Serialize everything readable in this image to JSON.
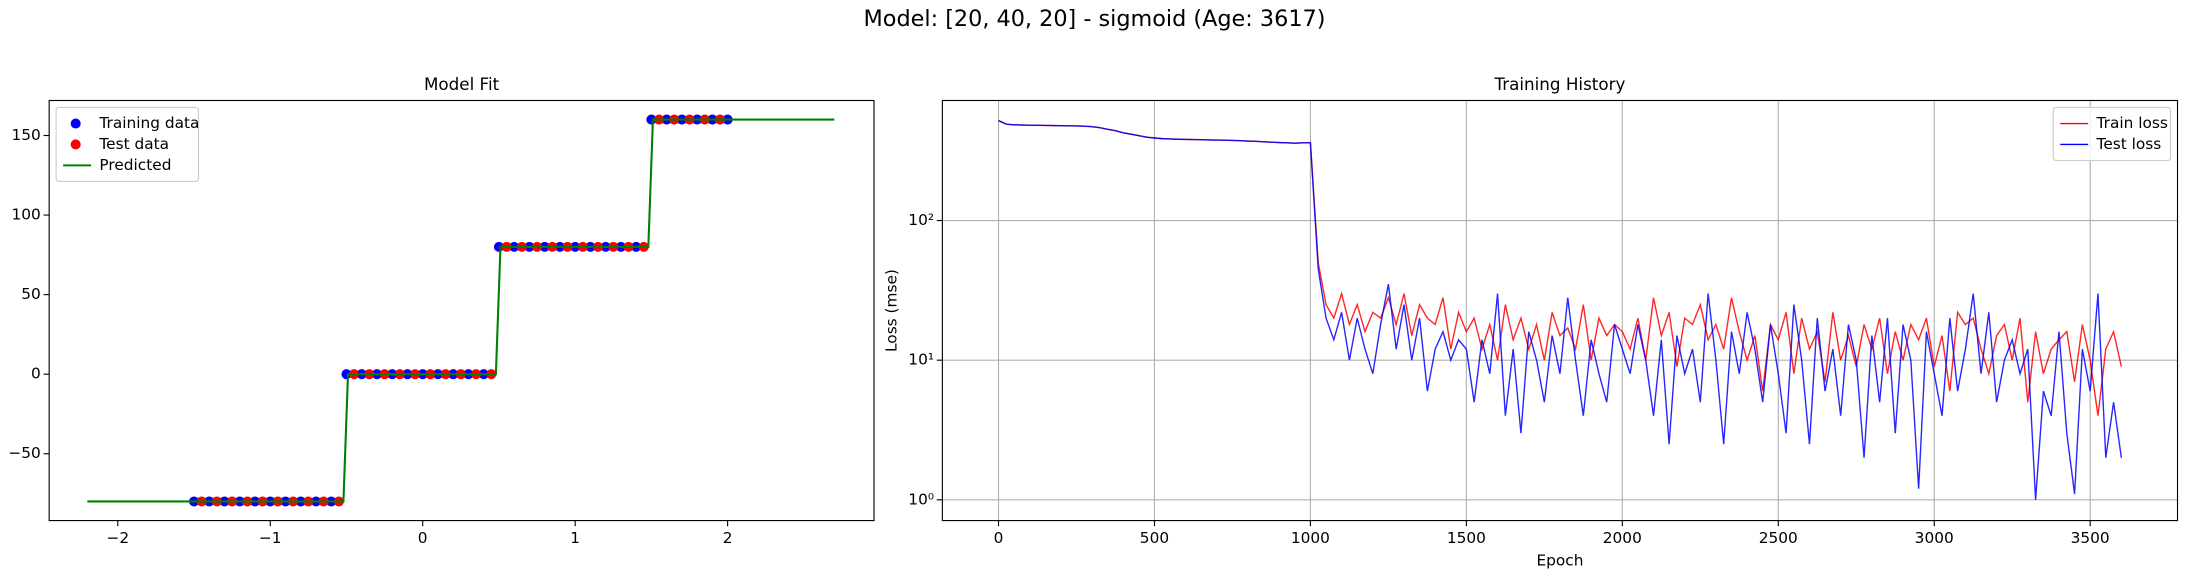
{
  "title": "Model: [20, 40, 20] - sigmoid (Age: 3617)",
  "chart_data": [
    {
      "type": "scatter",
      "title": "Model Fit",
      "legend": "upper left",
      "grid": false,
      "xlim": [
        -2.45,
        2.96
      ],
      "ylim": [
        -92,
        172
      ],
      "xticks": [
        {
          "value": -2,
          "label": "−2"
        },
        {
          "value": -1,
          "label": "−1"
        },
        0,
        1,
        2
      ],
      "yticks": [
        {
          "value": -50,
          "label": "−50"
        },
        0,
        50,
        100,
        150
      ],
      "series": [
        {
          "name": "Training data",
          "color": "blue",
          "style": "marker",
          "x": [
            -1.5,
            -1.4,
            -1.3,
            -1.2,
            -1.1,
            -1.0,
            -0.9,
            -0.8,
            -0.7,
            -0.6,
            -0.5,
            -0.4,
            -0.3,
            -0.2,
            -0.1,
            0.0,
            0.1,
            0.2,
            0.3,
            0.4,
            0.5,
            0.6,
            0.7,
            0.8,
            0.9,
            1.0,
            1.1,
            1.2,
            1.3,
            1.4,
            1.5,
            1.6,
            1.7,
            1.8,
            1.9,
            2.0
          ],
          "values": [
            -80,
            -80,
            -80,
            -80,
            -80,
            -80,
            -80,
            -80,
            -80,
            -80,
            0,
            0,
            0,
            0,
            0,
            0,
            0,
            0,
            0,
            0,
            80,
            80,
            80,
            80,
            80,
            80,
            80,
            80,
            80,
            80,
            160,
            160,
            160,
            160,
            160,
            160
          ]
        },
        {
          "name": "Test data",
          "color": "red",
          "style": "marker",
          "x": [
            -1.45,
            -1.35,
            -1.25,
            -1.15,
            -1.05,
            -0.95,
            -0.85,
            -0.75,
            -0.65,
            -0.55,
            -0.45,
            -0.35,
            -0.25,
            -0.15,
            -0.05,
            0.05,
            0.15,
            0.25,
            0.35,
            0.45,
            0.55,
            0.65,
            0.75,
            0.85,
            0.95,
            1.05,
            1.15,
            1.25,
            1.35,
            1.45,
            1.55,
            1.65,
            1.75,
            1.85,
            1.95
          ],
          "values": [
            -80,
            -80,
            -80,
            -80,
            -80,
            -80,
            -80,
            -80,
            -80,
            -80,
            0,
            0,
            0,
            0,
            0,
            0,
            0,
            0,
            0,
            0,
            80,
            80,
            80,
            80,
            80,
            80,
            80,
            80,
            80,
            80,
            160,
            160,
            160,
            160,
            160
          ]
        },
        {
          "name": "Predicted",
          "color": "green",
          "style": "line",
          "x": [
            -2.2,
            -0.52,
            -0.49,
            0.48,
            0.51,
            1.48,
            1.51,
            2.7
          ],
          "values": [
            -80,
            -80,
            0,
            0,
            80,
            80,
            160,
            160
          ]
        }
      ]
    },
    {
      "type": "line",
      "title": "Training History",
      "xlabel": "Epoch",
      "ylabel": "Loss (mse)",
      "legend": "upper right",
      "grid": true,
      "log_y": true,
      "xlim": [
        -180,
        3780
      ],
      "ylim": [
        0.71,
        724
      ],
      "xticks": [
        0,
        500,
        1000,
        1500,
        2000,
        2500,
        3000,
        3500
      ],
      "yticks": [
        {
          "value": 1,
          "label": "10⁰"
        },
        {
          "value": 10,
          "label": "10¹"
        },
        {
          "value": 100,
          "label": "10²"
        }
      ],
      "x": [
        0,
        25,
        50,
        75,
        100,
        125,
        150,
        175,
        200,
        225,
        250,
        275,
        300,
        325,
        350,
        375,
        400,
        425,
        450,
        475,
        500,
        525,
        550,
        575,
        600,
        625,
        650,
        675,
        700,
        725,
        750,
        775,
        800,
        825,
        850,
        875,
        900,
        925,
        950,
        975,
        1000,
        1025,
        1050,
        1075,
        1100,
        1125,
        1150,
        1175,
        1200,
        1225,
        1250,
        1275,
        1300,
        1325,
        1350,
        1375,
        1400,
        1425,
        1450,
        1475,
        1500,
        1525,
        1550,
        1575,
        1600,
        1625,
        1650,
        1675,
        1700,
        1725,
        1750,
        1775,
        1800,
        1825,
        1850,
        1875,
        1900,
        1925,
        1950,
        1975,
        2000,
        2025,
        2050,
        2075,
        2100,
        2125,
        2150,
        2175,
        2200,
        2225,
        2250,
        2275,
        2300,
        2325,
        2350,
        2375,
        2400,
        2425,
        2450,
        2475,
        2500,
        2525,
        2550,
        2575,
        2600,
        2625,
        2650,
        2675,
        2700,
        2725,
        2750,
        2775,
        2800,
        2825,
        2850,
        2875,
        2900,
        2925,
        2950,
        2975,
        3000,
        3025,
        3050,
        3075,
        3100,
        3125,
        3150,
        3175,
        3200,
        3225,
        3250,
        3275,
        3300,
        3325,
        3350,
        3375,
        3400,
        3425,
        3450,
        3475,
        3500,
        3525,
        3550,
        3575,
        3600
      ],
      "series": [
        {
          "name": "Train loss",
          "color": "red",
          "values": [
            520,
            490,
            485,
            483,
            482,
            481,
            480,
            479,
            478,
            477,
            476,
            474,
            470,
            462,
            450,
            440,
            425,
            415,
            405,
            395,
            390,
            386,
            384,
            382,
            381,
            380,
            379,
            378,
            377,
            376,
            375,
            373,
            371,
            369,
            366,
            364,
            362,
            360,
            358,
            360,
            360,
            50,
            25,
            20,
            30,
            18,
            25,
            16,
            22,
            20,
            28,
            18,
            30,
            15,
            25,
            20,
            18,
            28,
            12,
            22,
            16,
            20,
            12,
            18,
            10,
            25,
            14,
            20,
            12,
            18,
            10,
            22,
            15,
            17,
            12,
            25,
            10,
            20,
            15,
            18,
            16,
            12,
            20,
            10,
            28,
            15,
            22,
            9,
            20,
            18,
            25,
            14,
            18,
            12,
            28,
            16,
            10,
            15,
            6,
            18,
            14,
            22,
            8,
            20,
            12,
            16,
            7,
            22,
            10,
            15,
            9,
            18,
            12,
            20,
            8,
            16,
            10,
            18,
            14,
            20,
            9,
            15,
            6,
            22,
            18,
            20,
            12,
            8,
            15,
            18,
            10,
            20,
            5,
            16,
            8,
            12,
            14,
            16,
            7,
            18,
            10,
            4,
            12,
            16,
            9
          ]
        },
        {
          "name": "Test loss",
          "color": "blue",
          "values": [
            520,
            490,
            485,
            483,
            482,
            481,
            480,
            479,
            478,
            477,
            476,
            474,
            470,
            462,
            450,
            440,
            425,
            415,
            405,
            395,
            390,
            386,
            384,
            382,
            381,
            380,
            379,
            378,
            377,
            376,
            375,
            373,
            371,
            369,
            366,
            364,
            362,
            360,
            358,
            360,
            360,
            45,
            20,
            14,
            22,
            10,
            20,
            12,
            8,
            18,
            35,
            12,
            25,
            10,
            20,
            6,
            12,
            16,
            10,
            14,
            12,
            5,
            14,
            8,
            30,
            4,
            12,
            3,
            16,
            10,
            5,
            15,
            8,
            28,
            10,
            4,
            14,
            8,
            5,
            18,
            12,
            8,
            18,
            10,
            4,
            14,
            2.5,
            15,
            8,
            12,
            5,
            30,
            10,
            2.5,
            16,
            8,
            22,
            12,
            5,
            18,
            8,
            3,
            25,
            10,
            2.5,
            20,
            6,
            12,
            4,
            18,
            10,
            2,
            15,
            5,
            20,
            3,
            18,
            10,
            1.2,
            16,
            8,
            4,
            20,
            6,
            12,
            30,
            8,
            22,
            5,
            10,
            14,
            8,
            12,
            1,
            6,
            4,
            16,
            3,
            1.1,
            12,
            6,
            30,
            2,
            5,
            2
          ]
        }
      ]
    }
  ]
}
